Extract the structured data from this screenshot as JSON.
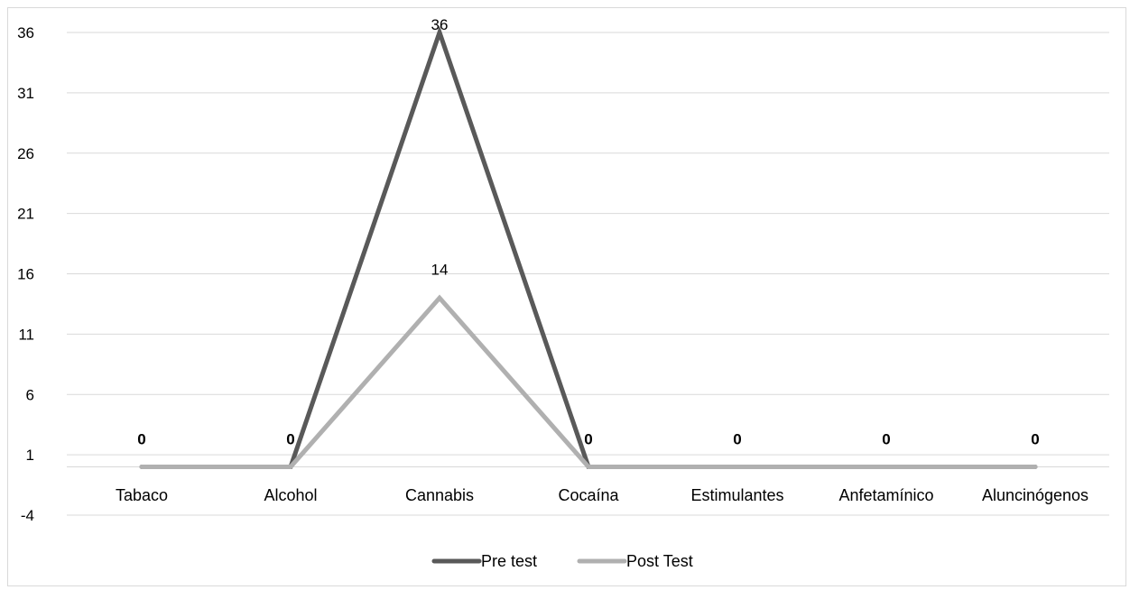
{
  "chart_data": {
    "type": "line",
    "categories": [
      "Tabaco",
      "Alcohol",
      "Cannabis",
      "Cocaína",
      "Estimulantes",
      "Anfetamínico",
      "Aluncinógenos"
    ],
    "series": [
      {
        "name": "Pre test",
        "values": [
          0,
          0,
          36,
          0,
          0,
          0,
          0
        ],
        "color": "#595959"
      },
      {
        "name": "Post Test",
        "values": [
          0,
          0,
          14,
          0,
          0,
          0,
          0
        ],
        "color": "#b0b0b0"
      }
    ],
    "data_labels": [
      "0",
      "0",
      "36",
      "0",
      "0",
      "0",
      "0"
    ],
    "post_test_labels": [
      "",
      "",
      "14",
      "",
      "",
      "",
      ""
    ],
    "y_ticks": [
      "36",
      "31",
      "26",
      "21",
      "16",
      "11",
      "6",
      "1",
      "-4"
    ],
    "ylim": [
      -4,
      36
    ],
    "grid": true,
    "legend_position": "bottom",
    "colors": {
      "grid": "#d9d9d9",
      "text": "#000000"
    }
  }
}
